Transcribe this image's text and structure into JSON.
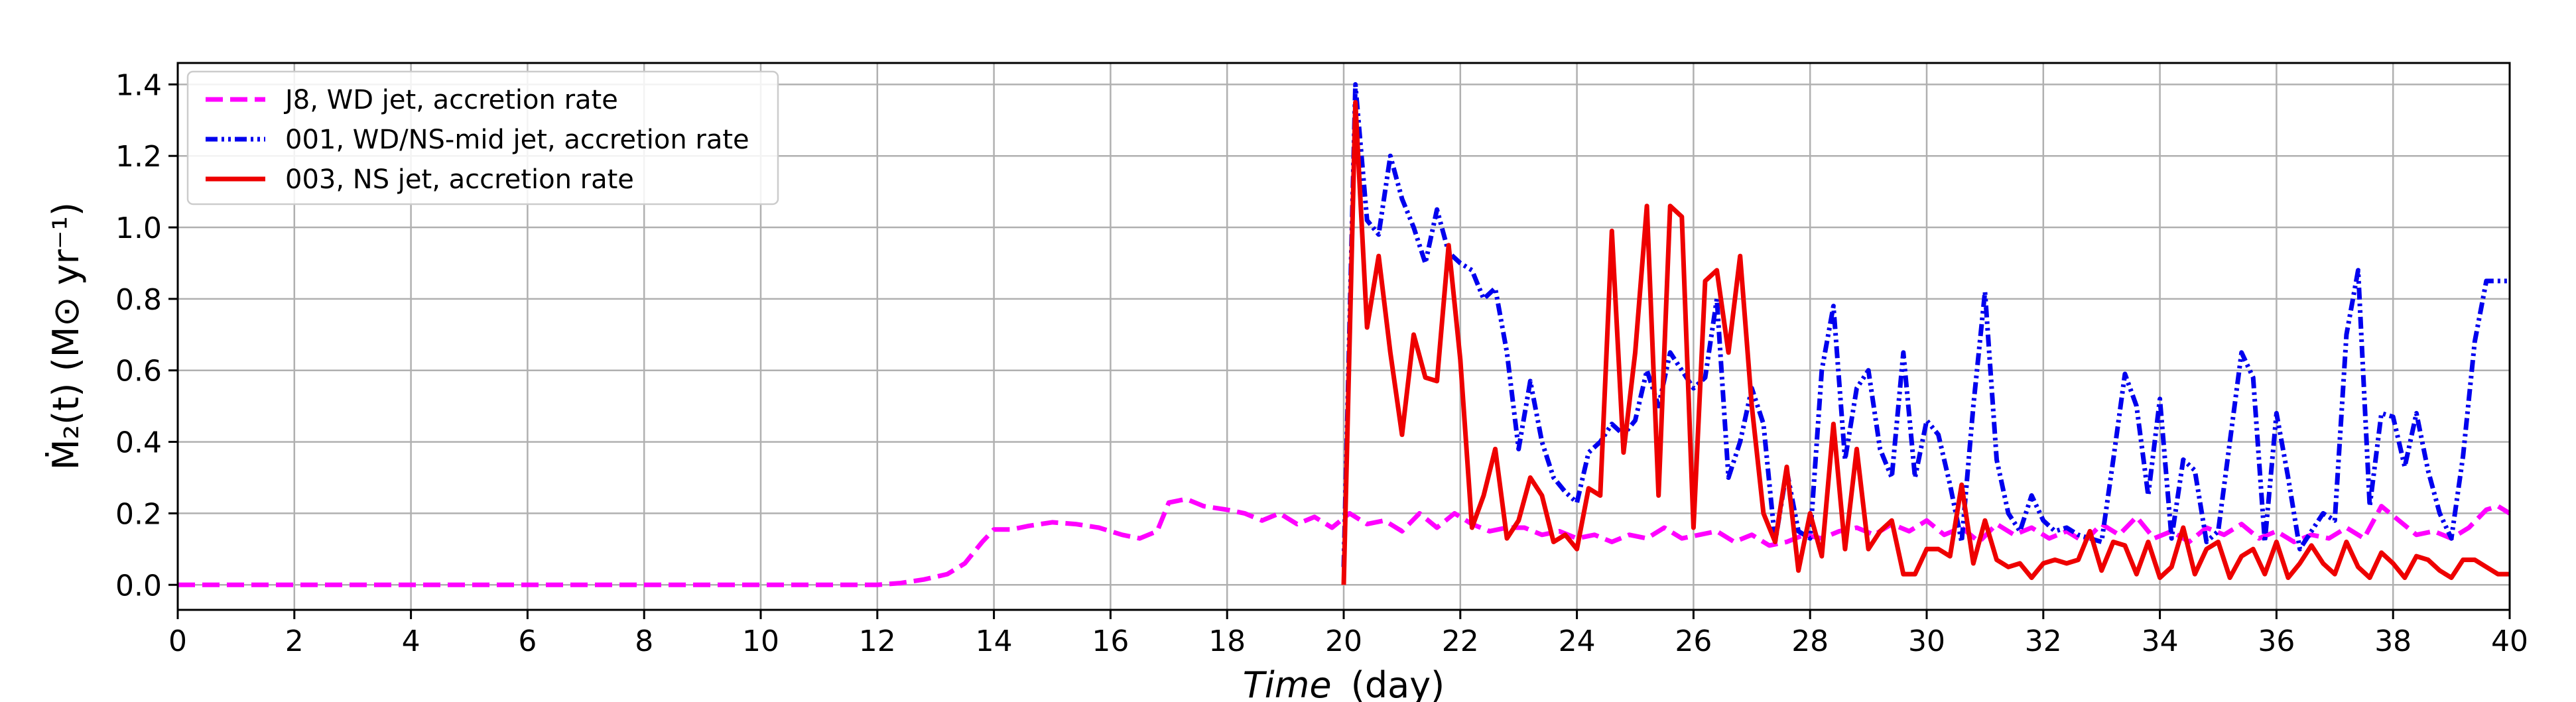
{
  "chart_data": {
    "type": "line",
    "title": "",
    "xlabel_main": "Time",
    "xlabel_unit": "(day)",
    "ylabel": "Ṁ₂(t) (M⊙ yr⁻¹)",
    "xlim": [
      0,
      40
    ],
    "ylim": [
      -0.07,
      1.46
    ],
    "xticks": [
      0,
      2,
      4,
      6,
      8,
      10,
      12,
      14,
      16,
      18,
      20,
      22,
      24,
      26,
      28,
      30,
      32,
      34,
      36,
      38,
      40
    ],
    "yticks": [
      0.0,
      0.2,
      0.4,
      0.6,
      0.8,
      1.0,
      1.2,
      1.4
    ],
    "ytick_labels": [
      "0.0",
      "0.2",
      "0.4",
      "0.6",
      "0.8",
      "1.0",
      "1.2",
      "1.4"
    ],
    "grid": true,
    "legend_position": "top-left",
    "series": [
      {
        "name": "J8, WD jet, accretion rate",
        "color": "#ff00ff",
        "style": "dashed",
        "x": [
          0,
          2,
          4,
          6,
          8,
          10,
          11,
          12,
          12.4,
          12.8,
          13.2,
          13.5,
          13.8,
          14,
          14.3,
          14.6,
          15,
          15.4,
          15.8,
          16.2,
          16.5,
          16.8,
          17,
          17.3,
          17.6,
          18,
          18.3,
          18.6,
          18.9,
          19.2,
          19.5,
          19.8,
          20.1,
          20.4,
          20.7,
          21,
          21.3,
          21.6,
          21.9,
          22.2,
          22.5,
          22.8,
          23.1,
          23.4,
          23.7,
          24,
          24.3,
          24.6,
          24.9,
          25.2,
          25.5,
          25.8,
          26.1,
          26.4,
          26.7,
          27,
          27.3,
          27.6,
          27.9,
          28.2,
          28.5,
          28.8,
          29.1,
          29.4,
          29.7,
          30,
          30.3,
          30.6,
          30.9,
          31.2,
          31.5,
          31.8,
          32.1,
          32.4,
          32.7,
          33,
          33.3,
          33.6,
          33.9,
          34.2,
          34.5,
          34.8,
          35.1,
          35.4,
          35.7,
          36,
          36.3,
          36.6,
          36.9,
          37.2,
          37.5,
          37.8,
          38.1,
          38.4,
          38.7,
          39,
          39.3,
          39.6,
          39.8,
          40
        ],
        "y": [
          0,
          0,
          0,
          0,
          0,
          0,
          0,
          0,
          0.005,
          0.015,
          0.03,
          0.06,
          0.12,
          0.155,
          0.155,
          0.165,
          0.175,
          0.17,
          0.16,
          0.14,
          0.13,
          0.15,
          0.23,
          0.24,
          0.22,
          0.21,
          0.2,
          0.18,
          0.2,
          0.17,
          0.19,
          0.16,
          0.2,
          0.17,
          0.18,
          0.15,
          0.2,
          0.16,
          0.2,
          0.17,
          0.15,
          0.16,
          0.16,
          0.14,
          0.15,
          0.13,
          0.14,
          0.12,
          0.14,
          0.13,
          0.16,
          0.13,
          0.14,
          0.15,
          0.12,
          0.14,
          0.11,
          0.12,
          0.14,
          0.13,
          0.15,
          0.16,
          0.14,
          0.17,
          0.15,
          0.18,
          0.14,
          0.16,
          0.12,
          0.17,
          0.14,
          0.16,
          0.13,
          0.15,
          0.12,
          0.17,
          0.14,
          0.19,
          0.13,
          0.15,
          0.12,
          0.16,
          0.14,
          0.17,
          0.13,
          0.15,
          0.12,
          0.14,
          0.13,
          0.16,
          0.13,
          0.22,
          0.18,
          0.14,
          0.15,
          0.13,
          0.16,
          0.21,
          0.22,
          0.2
        ]
      },
      {
        "name": "001, WD/NS-mid jet, accretion rate",
        "color": "#0000ee",
        "style": "dashdot",
        "x": [
          20.0,
          20.2,
          20.4,
          20.6,
          20.8,
          21.0,
          21.2,
          21.4,
          21.6,
          21.8,
          22.0,
          22.2,
          22.4,
          22.6,
          22.8,
          23.0,
          23.2,
          23.4,
          23.6,
          23.8,
          24.0,
          24.2,
          24.4,
          24.6,
          24.8,
          25.0,
          25.2,
          25.4,
          25.6,
          25.8,
          26.0,
          26.2,
          26.4,
          26.6,
          26.8,
          27.0,
          27.2,
          27.4,
          27.6,
          27.8,
          28.0,
          28.2,
          28.4,
          28.6,
          28.8,
          29.0,
          29.2,
          29.4,
          29.6,
          29.8,
          30.0,
          30.2,
          30.4,
          30.6,
          30.8,
          31.0,
          31.2,
          31.4,
          31.6,
          31.8,
          32.0,
          32.2,
          32.4,
          32.6,
          32.8,
          33.0,
          33.2,
          33.4,
          33.6,
          33.8,
          34.0,
          34.2,
          34.4,
          34.6,
          34.8,
          35.0,
          35.2,
          35.4,
          35.6,
          35.8,
          36.0,
          36.2,
          36.4,
          36.6,
          36.8,
          37.0,
          37.2,
          37.4,
          37.6,
          37.8,
          38.0,
          38.2,
          38.4,
          38.6,
          38.8,
          39.0,
          39.2,
          39.4,
          39.6,
          39.8,
          40.0
        ],
        "y": [
          0.05,
          1.4,
          1.02,
          0.98,
          1.2,
          1.08,
          1.0,
          0.9,
          1.05,
          0.93,
          0.9,
          0.88,
          0.8,
          0.83,
          0.65,
          0.38,
          0.57,
          0.4,
          0.3,
          0.26,
          0.23,
          0.37,
          0.4,
          0.45,
          0.42,
          0.46,
          0.6,
          0.5,
          0.65,
          0.6,
          0.55,
          0.58,
          0.8,
          0.3,
          0.4,
          0.55,
          0.45,
          0.12,
          0.32,
          0.15,
          0.13,
          0.6,
          0.78,
          0.35,
          0.55,
          0.6,
          0.38,
          0.3,
          0.65,
          0.3,
          0.46,
          0.42,
          0.28,
          0.12,
          0.5,
          0.82,
          0.35,
          0.2,
          0.15,
          0.25,
          0.18,
          0.15,
          0.16,
          0.14,
          0.13,
          0.12,
          0.35,
          0.59,
          0.5,
          0.25,
          0.52,
          0.13,
          0.35,
          0.32,
          0.12,
          0.15,
          0.4,
          0.65,
          0.58,
          0.12,
          0.48,
          0.3,
          0.1,
          0.15,
          0.2,
          0.18,
          0.7,
          0.88,
          0.22,
          0.48,
          0.47,
          0.33,
          0.48,
          0.32,
          0.2,
          0.13,
          0.36,
          0.68,
          0.85,
          0.85,
          0.85
        ]
      },
      {
        "name": "003, NS jet, accretion rate",
        "color": "#ee0000",
        "style": "solid",
        "x": [
          20.0,
          20.2,
          20.4,
          20.6,
          20.8,
          21.0,
          21.2,
          21.4,
          21.6,
          21.8,
          22.0,
          22.2,
          22.4,
          22.6,
          22.8,
          23.0,
          23.2,
          23.4,
          23.6,
          23.8,
          24.0,
          24.2,
          24.4,
          24.6,
          24.8,
          25.0,
          25.2,
          25.4,
          25.6,
          25.8,
          26.0,
          26.2,
          26.4,
          26.6,
          26.8,
          27.0,
          27.2,
          27.4,
          27.6,
          27.8,
          28.0,
          28.2,
          28.4,
          28.6,
          28.8,
          29.0,
          29.2,
          29.4,
          29.6,
          29.8,
          30.0,
          30.2,
          30.4,
          30.6,
          30.8,
          31.0,
          31.2,
          31.4,
          31.6,
          31.8,
          32.0,
          32.2,
          32.4,
          32.6,
          32.8,
          33.0,
          33.2,
          33.4,
          33.6,
          33.8,
          34.0,
          34.2,
          34.4,
          34.6,
          34.8,
          35.0,
          35.2,
          35.4,
          35.6,
          35.8,
          36.0,
          36.2,
          36.4,
          36.6,
          36.8,
          37.0,
          37.2,
          37.4,
          37.6,
          37.8,
          38.0,
          38.2,
          38.4,
          38.6,
          38.8,
          39.0,
          39.2,
          39.4,
          39.6,
          39.8,
          40.0
        ],
        "y": [
          0.0,
          1.35,
          0.72,
          0.92,
          0.65,
          0.42,
          0.7,
          0.58,
          0.57,
          0.95,
          0.63,
          0.16,
          0.25,
          0.38,
          0.13,
          0.18,
          0.3,
          0.25,
          0.12,
          0.14,
          0.1,
          0.27,
          0.25,
          0.99,
          0.37,
          0.65,
          1.06,
          0.25,
          1.06,
          1.03,
          0.16,
          0.85,
          0.88,
          0.65,
          0.92,
          0.5,
          0.2,
          0.12,
          0.33,
          0.04,
          0.2,
          0.08,
          0.45,
          0.1,
          0.38,
          0.1,
          0.15,
          0.18,
          0.03,
          0.03,
          0.1,
          0.1,
          0.08,
          0.28,
          0.06,
          0.18,
          0.07,
          0.05,
          0.06,
          0.02,
          0.06,
          0.07,
          0.06,
          0.07,
          0.15,
          0.04,
          0.12,
          0.11,
          0.03,
          0.12,
          0.02,
          0.05,
          0.16,
          0.03,
          0.1,
          0.12,
          0.02,
          0.08,
          0.1,
          0.03,
          0.12,
          0.02,
          0.06,
          0.11,
          0.06,
          0.03,
          0.12,
          0.05,
          0.02,
          0.09,
          0.06,
          0.02,
          0.08,
          0.07,
          0.04,
          0.02,
          0.07,
          0.07,
          0.05,
          0.03,
          0.03
        ]
      }
    ]
  }
}
